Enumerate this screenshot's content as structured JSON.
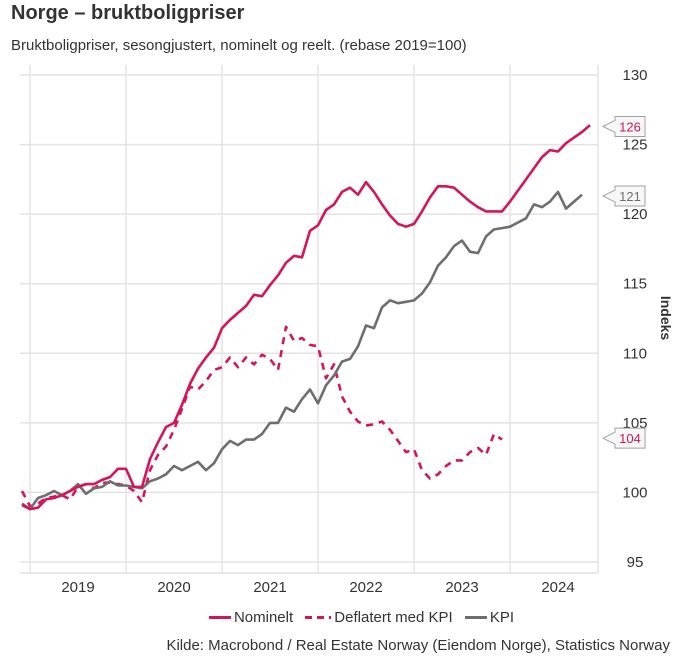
{
  "header": {
    "title": "Norge – bruktboligpriser",
    "subtitle": "Bruktboligpriser, sesongjustert, nominelt og reelt. (rebase 2019=100)"
  },
  "source": "Kilde: Macrobond / Real Estate Norway (Eiendom Norge), Statistics Norway",
  "colors": {
    "nominal": "#d6145a",
    "kpi": "#6e6e6e",
    "grid": "#e3e3e3"
  },
  "chart_data": {
    "type": "line",
    "title": "Norge – bruktboligpriser",
    "subtitle": "Bruktboligpriser, sesongjustert, nominelt og reelt. (rebase 2019=100)",
    "xlabel": "",
    "ylabel": "Indeks",
    "ylim": [
      95,
      130
    ],
    "yticks": [
      95,
      100,
      105,
      110,
      115,
      120,
      125,
      130
    ],
    "xticks": [
      "2019",
      "2020",
      "2021",
      "2022",
      "2023",
      "2024"
    ],
    "x_start": "2018-12",
    "x_frequency": "monthly",
    "grid": true,
    "legend": "bottom-center",
    "y_axis_side": "right",
    "series": [
      {
        "name": "Nominelt",
        "style": "solid",
        "color": "#d6145a",
        "end_label": "126",
        "values": [
          99.1,
          98.8,
          98.9,
          99.5,
          99.6,
          99.8,
          100.1,
          100.4,
          100.6,
          100.6,
          100.9,
          101.1,
          101.7,
          101.7,
          100.4,
          100.4,
          102.4,
          103.6,
          104.7,
          105.0,
          106.3,
          107.8,
          108.9,
          109.7,
          110.4,
          111.8,
          112.4,
          112.9,
          113.4,
          114.2,
          114.1,
          114.9,
          115.6,
          116.5,
          117.0,
          116.9,
          118.8,
          119.2,
          120.3,
          120.7,
          121.6,
          121.9,
          121.4,
          122.3,
          121.6,
          120.7,
          119.9,
          119.3,
          119.1,
          119.3,
          120.2,
          121.2,
          122.0,
          122.0,
          121.9,
          121.4,
          120.9,
          120.5,
          120.2,
          120.2,
          120.2,
          120.9,
          121.7,
          122.5,
          123.3,
          124.1,
          124.6,
          124.5,
          125.1,
          125.5,
          125.9,
          126.4
        ]
      },
      {
        "name": "Deflatert med KPI",
        "style": "dashed",
        "color": "#d6145a",
        "end_label": "104",
        "values": [
          100.1,
          99.0,
          99.2,
          99.6,
          99.7,
          99.8,
          99.5,
          100.4,
          100.6,
          100.3,
          100.7,
          100.7,
          100.6,
          100.5,
          100.1,
          99.3,
          101.6,
          102.7,
          103.3,
          104.5,
          106.0,
          107.6,
          107.4,
          108.0,
          108.8,
          109.0,
          109.7,
          109.0,
          109.7,
          109.2,
          109.9,
          109.6,
          108.8,
          111.9,
          110.9,
          111.1,
          110.6,
          110.5,
          108.2,
          109.2,
          106.9,
          105.8,
          105.1,
          104.8,
          104.9,
          105.1,
          104.5,
          103.7,
          102.9,
          103.1,
          101.6,
          101.0,
          101.3,
          101.9,
          102.3,
          102.3,
          102.9,
          103.2,
          102.7,
          104.2,
          103.8
        ]
      },
      {
        "name": "KPI",
        "style": "solid",
        "color": "#6e6e6e",
        "end_label": "121",
        "values": [
          99.2,
          98.8,
          99.6,
          99.8,
          100.1,
          99.8,
          100.1,
          100.6,
          99.9,
          100.3,
          100.4,
          100.8,
          100.5,
          100.5,
          100.4,
          100.3,
          100.8,
          101.0,
          101.3,
          101.9,
          101.6,
          101.9,
          102.2,
          101.6,
          102.1,
          103.1,
          103.7,
          103.4,
          103.8,
          103.8,
          104.2,
          105.0,
          105.0,
          106.1,
          105.8,
          106.7,
          107.4,
          106.4,
          107.7,
          108.4,
          109.4,
          109.6,
          110.5,
          112.0,
          111.8,
          113.3,
          113.8,
          113.6,
          113.7,
          113.8,
          114.3,
          115.1,
          116.3,
          116.9,
          117.7,
          118.1,
          117.3,
          117.2,
          118.4,
          118.9,
          119.0,
          119.1,
          119.4,
          119.7,
          120.7,
          120.5,
          120.9,
          121.6,
          120.4,
          120.9,
          121.4
        ]
      }
    ],
    "end_labels": [
      "126",
      "121",
      "104"
    ]
  }
}
